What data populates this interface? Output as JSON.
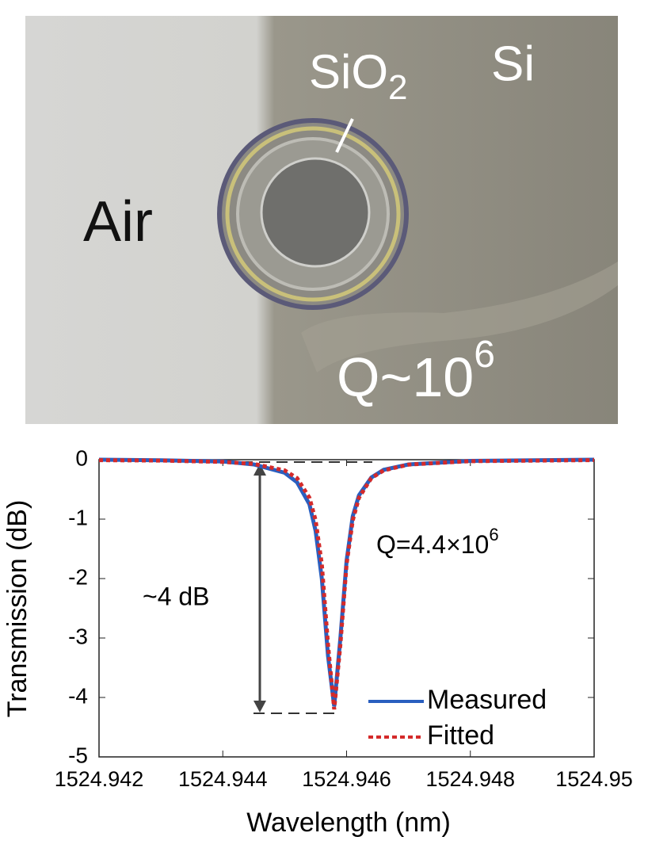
{
  "photo": {
    "labels": {
      "air": "Air",
      "oxide": {
        "text": "SiO",
        "subscript": "2"
      },
      "silicon": "Si",
      "quality": {
        "text": "Q~10",
        "superscript": "6"
      }
    }
  },
  "chart_data": {
    "type": "line",
    "x_label": "Wavelength (nm)",
    "y_label": "Transmission (dB)",
    "annotations": [
      {
        "text": "~4 dB"
      },
      {
        "text": "Q=4.4×10",
        "superscript": "6"
      }
    ],
    "x": [
      1524.942,
      1524.943,
      1524.944,
      1524.9445,
      1524.945,
      1524.9452,
      1524.9454,
      1524.9455,
      1524.9456,
      1524.9457,
      1524.9458,
      1524.9459,
      1524.946,
      1524.9461,
      1524.9462,
      1524.9464,
      1524.9466,
      1524.947,
      1524.948,
      1524.95
    ],
    "series": [
      {
        "name": "Measured",
        "color": "#2a5fbf",
        "dash": false,
        "values": [
          0.0,
          -0.01,
          -0.03,
          -0.08,
          -0.22,
          -0.38,
          -0.75,
          -1.2,
          -2.0,
          -3.3,
          -4.15,
          -3.0,
          -1.7,
          -0.95,
          -0.6,
          -0.3,
          -0.17,
          -0.08,
          -0.02,
          0.0
        ]
      },
      {
        "name": "Fitted",
        "color": "#d42a2a",
        "dash": true,
        "values": [
          -0.008,
          -0.015,
          -0.037,
          -0.071,
          -0.18,
          -0.31,
          -0.64,
          -1.02,
          -1.76,
          -3.11,
          -4.2,
          -3.11,
          -1.76,
          -1.02,
          -0.64,
          -0.31,
          -0.18,
          -0.083,
          -0.025,
          -0.007
        ]
      }
    ],
    "xlim": [
      1524.942,
      1524.95
    ],
    "xticks": [
      1524.942,
      1524.944,
      1524.946,
      1524.948,
      1524.95
    ],
    "ylim": [
      -5,
      0
    ],
    "yticks": [
      0,
      -1,
      -2,
      -3,
      -4,
      -5
    ],
    "legend": "lower right"
  }
}
